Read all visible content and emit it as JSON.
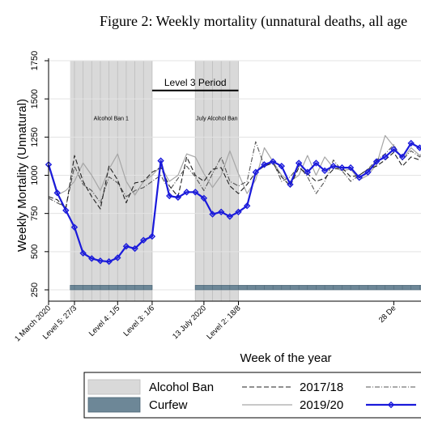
{
  "figure_title": "Figure 2: Weekly mortality (unnatural deaths, all age",
  "chart_data": {
    "type": "line",
    "title": "Figure 2: Weekly mortality (unnatural deaths, all age",
    "xlabel": "Week of the year",
    "ylabel": "Weekly Mortality (Unnatural)",
    "ylim": [
      250,
      1750
    ],
    "yticks": [
      250,
      500,
      750,
      1000,
      1250,
      1500,
      1750
    ],
    "x_range_weeks": [
      1,
      48
    ],
    "xticks": [
      {
        "week": 1,
        "label": "1 March 2020"
      },
      {
        "week": 4,
        "label": "Level 5: 27/3"
      },
      {
        "week": 9,
        "label": "Level 4: 1/5"
      },
      {
        "week": 13,
        "label": "Level 3: 1/6"
      },
      {
        "week": 19,
        "label": "13 July 2020"
      },
      {
        "week": 23,
        "label": "Level 2: 18/8"
      },
      {
        "week": 41,
        "label": "28 De"
      }
    ],
    "grid": "horizontal",
    "legend_placement": "bottom",
    "legend": [
      {
        "label": "Alcohol Ban",
        "kind": "shade"
      },
      {
        "label": "2017/18",
        "kind": "dash"
      },
      {
        "label": "",
        "kind": "dashdot"
      },
      {
        "label": "Curfew",
        "kind": "curfew"
      },
      {
        "label": "2019/20",
        "kind": "gray"
      },
      {
        "label": "",
        "kind": "blue"
      }
    ],
    "shaded_periods": [
      {
        "label": "Alcohol Ban 1",
        "start_week": 3.5,
        "end_week": 13
      },
      {
        "label": "July Alcohol Ban",
        "start_week": 18,
        "end_week": 23
      }
    ],
    "curfew_periods": [
      {
        "start_week": 3.5,
        "end_week": 13
      },
      {
        "start_week": 18,
        "end_week": 48
      }
    ],
    "annotations": [
      {
        "label": "Level 3 Period",
        "start_week": 13,
        "end_week": 23,
        "y": 1555
      }
    ],
    "series": [
      {
        "name": "",
        "style": "blue",
        "x": [
          1,
          2,
          3,
          4,
          5,
          6,
          7,
          8,
          9,
          10,
          11,
          12,
          13,
          14,
          15,
          16,
          17,
          18,
          19,
          20,
          21,
          22,
          23,
          24,
          25,
          26,
          27,
          28,
          29,
          30,
          31,
          32,
          33,
          34,
          35,
          36,
          37,
          38,
          39,
          40,
          41,
          42,
          43,
          44,
          45,
          46,
          47,
          48
        ],
        "y": [
          1070,
          885,
          770,
          660,
          490,
          455,
          440,
          435,
          460,
          535,
          520,
          575,
          600,
          1095,
          865,
          855,
          890,
          890,
          850,
          745,
          760,
          730,
          760,
          800,
          1020,
          1070,
          1090,
          1060,
          940,
          1080,
          1020,
          1080,
          1030,
          1060,
          1050,
          1050,
          985,
          1020,
          1090,
          1120,
          1170,
          1120,
          1210,
          1180,
          1140,
          1080,
          1160,
          1090
        ]
      },
      {
        "name": "2017/18",
        "style": "dash",
        "x": [
          1,
          2,
          3,
          4,
          5,
          6,
          7,
          8,
          9,
          10,
          11,
          12,
          13,
          14,
          15,
          16,
          17,
          18,
          19,
          20,
          21,
          22,
          23,
          24,
          25,
          26,
          27,
          28,
          29,
          30,
          31,
          32,
          33,
          34,
          35,
          36,
          37,
          38,
          39,
          40,
          41,
          42,
          43,
          44,
          45,
          46,
          47,
          48
        ],
        "y": [
          860,
          840,
          780,
          1130,
          960,
          860,
          780,
          1060,
          970,
          820,
          950,
          960,
          1020,
          1050,
          930,
          860,
          1120,
          1000,
          960,
          1040,
          1050,
          930,
          880,
          940,
          1020,
          1060,
          1080,
          990,
          930,
          1050,
          1010,
          960,
          980,
          1040,
          1050,
          990,
          1000,
          1040,
          1060,
          1100,
          1150,
          1060,
          1120,
          1100,
          1090,
          1060,
          1120,
          1080
        ]
      },
      {
        "name": "",
        "style": "dashdot",
        "x": [
          1,
          2,
          3,
          4,
          5,
          6,
          7,
          8,
          9,
          10,
          11,
          12,
          13,
          14,
          15,
          16,
          17,
          18,
          19,
          20,
          21,
          22,
          23,
          24,
          25,
          26,
          27,
          28,
          29,
          30,
          31,
          32,
          33,
          34,
          35,
          36,
          37,
          38,
          39,
          40,
          41,
          42,
          43,
          44,
          45,
          46,
          47,
          48
        ],
        "y": [
          850,
          820,
          790,
          1060,
          940,
          900,
          820,
          990,
          950,
          860,
          900,
          920,
          960,
          1000,
          900,
          980,
          1060,
          990,
          900,
          1010,
          1120,
          960,
          930,
          960,
          1220,
          1060,
          1090,
          960,
          990,
          1060,
          990,
          880,
          960,
          1100,
          1030,
          960,
          1000,
          1040,
          1100,
          1140,
          1200,
          1100,
          1160,
          1120,
          1180,
          1060,
          1140,
          1100
        ]
      },
      {
        "name": "2019/20",
        "style": "gray",
        "x": [
          1,
          2,
          3,
          4,
          5,
          6,
          7,
          8,
          9,
          10,
          11,
          12,
          13,
          14,
          15,
          16,
          17,
          18,
          19,
          20,
          21,
          22,
          23,
          24,
          25,
          26,
          27,
          28,
          29,
          30,
          31,
          32,
          33,
          34,
          35,
          36,
          37,
          38,
          39,
          40,
          41,
          42,
          43,
          44,
          45,
          46,
          47,
          48
        ],
        "y": [
          1060,
          870,
          900,
          960,
          1080,
          1000,
          900,
          1040,
          1140,
          960,
          870,
          960,
          1000,
          1060,
          960,
          1000,
          1140,
          1120,
          1010,
          920,
          1000,
          1160,
          1010,
          880,
          970,
          1180,
          1090,
          1000,
          960,
          1000,
          1130,
          1000,
          1120,
          1050,
          1030,
          1040,
          970,
          1000,
          1070,
          1260,
          1190,
          1100,
          1180,
          1130,
          1170,
          1090,
          1200,
          1120
        ]
      }
    ]
  }
}
